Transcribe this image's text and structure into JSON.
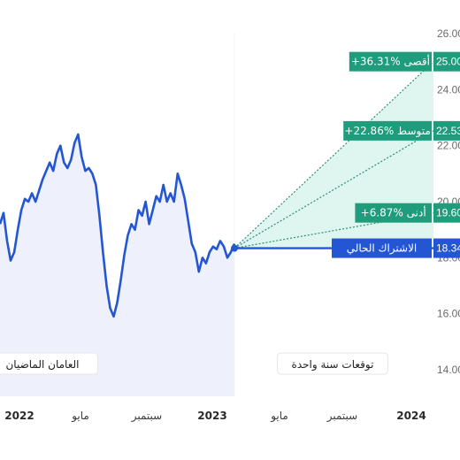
{
  "chart_data": {
    "type": "line",
    "ylim": [
      13,
      26
    ],
    "y_ticks": [
      "26.00",
      "24.00",
      "22.00",
      "20.00",
      "18.00",
      "16.00",
      "14.00"
    ],
    "x_ticks": [
      {
        "label": "2022",
        "year": true
      },
      {
        "label": "مايو",
        "year": false
      },
      {
        "label": "سبتمبر",
        "year": false
      },
      {
        "label": "2023",
        "year": true
      },
      {
        "label": "مايو",
        "year": false
      },
      {
        "label": "سبتمبر",
        "year": false
      },
      {
        "label": "2024",
        "year": true
      }
    ],
    "history": [
      19.2,
      19.6,
      18.6,
      17.9,
      18.2,
      19.0,
      19.7,
      20.1,
      20.0,
      20.3,
      20.0,
      20.4,
      20.8,
      21.1,
      21.4,
      21.1,
      21.7,
      22.0,
      21.4,
      21.2,
      21.5,
      22.1,
      22.4,
      21.6,
      21.1,
      21.2,
      21.0,
      20.6,
      19.5,
      18.2,
      17.0,
      16.2,
      15.9,
      16.4,
      17.2,
      18.1,
      18.8,
      19.2,
      19.0,
      19.7,
      19.5,
      20.0,
      19.2,
      19.7,
      20.2,
      20.0,
      20.6,
      20.0,
      20.3,
      20.0,
      21.0,
      20.6,
      20.1,
      19.3,
      18.5,
      18.2,
      17.5,
      18.0,
      17.8,
      18.2,
      18.4,
      18.3,
      18.6,
      18.4,
      18.0,
      18.2,
      18.5
    ],
    "current": {
      "label": "الاشتراك الحالي",
      "value": "18.34"
    },
    "forecasts": [
      {
        "label": "+36.31% أقصى",
        "value": "25.00",
        "color": "#1a9a7a"
      },
      {
        "label": "+22.86% متوسط",
        "value": "22.53",
        "color": "#1a9a7a"
      },
      {
        "label": "+6.87% أدنى",
        "value": "19.60",
        "color": "#1a9a7a"
      }
    ],
    "periods": {
      "past": "العامان الماضيان",
      "future": "توقعات سنة واحدة"
    }
  },
  "colors": {
    "line": "#2456d4",
    "forecast": "#1f9c7c",
    "fill_hist": "#eef1fb",
    "fill_forecast": "#d8f5ec"
  }
}
